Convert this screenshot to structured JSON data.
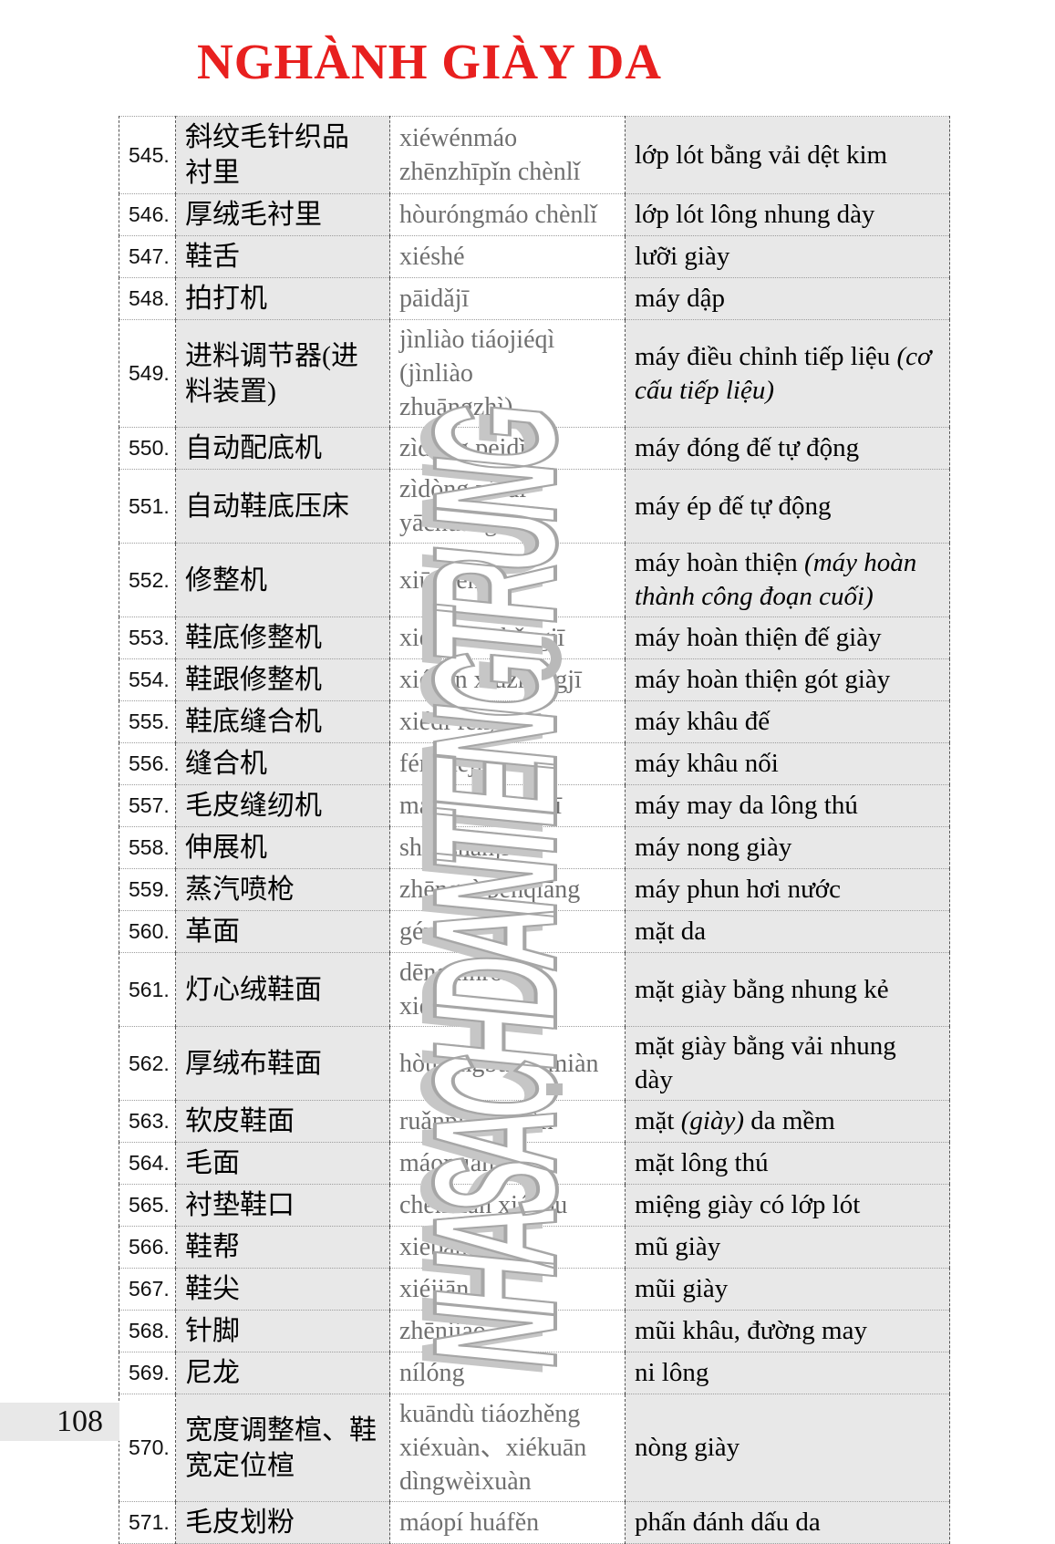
{
  "page": {
    "title": "NGHÀNH GIÀY DA",
    "page_number": "108",
    "colors": {
      "title_red": "#e8201f",
      "cell_gray": "#e8e8e8",
      "pinyin_gray": "#6f6f6f",
      "watermark_gray": "#b9b9b9"
    }
  },
  "watermark": {
    "text": "NHASACHDANTIENGTRUNG"
  },
  "table": {
    "columns": [
      "number",
      "chinese",
      "pinyin",
      "vietnamese"
    ],
    "rows": [
      {
        "num": "545.",
        "zh": [
          "斜纹毛针织品",
          "衬里"
        ],
        "py": [
          "xiéwénmáo",
          "zhēnzhīpǐn chènlǐ"
        ],
        "vi": [
          {
            "t": "lớp lót bằng vải dệt kim",
            "i": false
          }
        ]
      },
      {
        "num": "546.",
        "zh": [
          "厚绒毛衬里"
        ],
        "py": [
          "hòuróngmáo chènlǐ"
        ],
        "vi": [
          {
            "t": "lớp lót lông nhung dày",
            "i": false
          }
        ]
      },
      {
        "num": "547.",
        "zh": [
          "鞋舌"
        ],
        "py": [
          "xiéshé"
        ],
        "vi": [
          {
            "t": "lưỡi giày",
            "i": false
          }
        ]
      },
      {
        "num": "548.",
        "zh": [
          "拍打机"
        ],
        "py": [
          "pāidǎjī"
        ],
        "vi": [
          {
            "t": "máy dập",
            "i": false
          }
        ]
      },
      {
        "num": "549.",
        "zh": [
          "进料调节器(进",
          "料装置)"
        ],
        "py": [
          "jìnliào tiáojiéqì (jìnliào",
          "zhuāngzhì)"
        ],
        "vi": [
          {
            "t": "máy điều chỉnh tiếp liệu ",
            "i": false
          },
          {
            "t": "(cơ cấu tiếp liệu)",
            "i": true
          }
        ]
      },
      {
        "num": "550.",
        "zh": [
          "自动配底机"
        ],
        "py": [
          "zìdòng pèidǐjī"
        ],
        "vi": [
          {
            "t": "máy đóng đế tự động",
            "i": false
          }
        ]
      },
      {
        "num": "551.",
        "zh": [
          "自动鞋底压床"
        ],
        "py": [
          "zìdòng xiédǐ yāchuáng"
        ],
        "vi": [
          {
            "t": "máy ép đế tự động",
            "i": false
          }
        ]
      },
      {
        "num": "552.",
        "zh": [
          "修整机"
        ],
        "py": [
          "xiūzhěngjī"
        ],
        "vi": [
          {
            "t": "máy hoàn thiện ",
            "i": false
          },
          {
            "t": "(máy hoàn thành công đoạn cuối)",
            "i": true
          }
        ]
      },
      {
        "num": "553.",
        "zh": [
          "鞋底修整机"
        ],
        "py": [
          "xiédǐ xiūzhěngjī"
        ],
        "vi": [
          {
            "t": "máy hoàn thiện đế giày",
            "i": false
          }
        ]
      },
      {
        "num": "554.",
        "zh": [
          "鞋跟修整机"
        ],
        "py": [
          "xiégēn xiūzhěngjī"
        ],
        "vi": [
          {
            "t": "máy hoàn thiện gót giày",
            "i": false
          }
        ]
      },
      {
        "num": "555.",
        "zh": [
          "鞋底缝合机"
        ],
        "py": [
          "xiédǐ fénghéjī"
        ],
        "vi": [
          {
            "t": "máy khâu đế",
            "i": false
          }
        ]
      },
      {
        "num": "556.",
        "zh": [
          "缝合机"
        ],
        "py": [
          "fénghéjī"
        ],
        "vi": [
          {
            "t": "máy khâu nối",
            "i": false
          }
        ]
      },
      {
        "num": "557.",
        "zh": [
          "毛皮缝纫机"
        ],
        "py": [
          "máopí féngrènjī"
        ],
        "vi": [
          {
            "t": "máy may da lông thú",
            "i": false
          }
        ]
      },
      {
        "num": "558.",
        "zh": [
          "伸展机"
        ],
        "py": [
          "shēnzhǎnjī"
        ],
        "vi": [
          {
            "t": "máy nong giày",
            "i": false
          }
        ]
      },
      {
        "num": "559.",
        "zh": [
          "蒸汽喷枪"
        ],
        "py": [
          "zhēngqì pēnqiāng"
        ],
        "vi": [
          {
            "t": "máy phun hơi nước",
            "i": false
          }
        ]
      },
      {
        "num": "560.",
        "zh": [
          "革面"
        ],
        "py": [
          "gémiàn"
        ],
        "vi": [
          {
            "t": "mặt da",
            "i": false
          }
        ]
      },
      {
        "num": "561.",
        "zh": [
          "灯心绒鞋面"
        ],
        "py": [
          "dēngxīnróng xiémiàn"
        ],
        "vi": [
          {
            "t": "mặt giày bằng nhung kẻ",
            "i": false
          }
        ]
      },
      {
        "num": "562.",
        "zh": [
          "厚绒布鞋面"
        ],
        "py": [
          "hòuróngbù xiémiàn"
        ],
        "vi": [
          {
            "t": "mặt giày bằng vải nhung dày",
            "i": false
          }
        ]
      },
      {
        "num": "563.",
        "zh": [
          "软皮鞋面"
        ],
        "py": [
          "ruǎnpí xiémiàn"
        ],
        "vi": [
          {
            "t": "mặt ",
            "i": false
          },
          {
            "t": "(giày)",
            "i": true
          },
          {
            "t": " da mềm",
            "i": false
          }
        ]
      },
      {
        "num": "564.",
        "zh": [
          "毛面"
        ],
        "py": [
          "máomiàn"
        ],
        "vi": [
          {
            "t": "mặt lông thú",
            "i": false
          }
        ]
      },
      {
        "num": "565.",
        "zh": [
          "衬垫鞋口"
        ],
        "py": [
          "chèndiàn xiékǒu"
        ],
        "vi": [
          {
            "t": "miệng giày có lớp lót",
            "i": false
          }
        ]
      },
      {
        "num": "566.",
        "zh": [
          "鞋帮"
        ],
        "py": [
          "xiébāng"
        ],
        "vi": [
          {
            "t": "mũ giày",
            "i": false
          }
        ]
      },
      {
        "num": "567.",
        "zh": [
          "鞋尖"
        ],
        "py": [
          "xiéjiān"
        ],
        "vi": [
          {
            "t": "mũi giày",
            "i": false
          }
        ]
      },
      {
        "num": "568.",
        "zh": [
          "针脚"
        ],
        "py": [
          "zhēnjiǎo"
        ],
        "vi": [
          {
            "t": "mũi khâu, đường may",
            "i": false
          }
        ]
      },
      {
        "num": "569.",
        "zh": [
          "尼龙"
        ],
        "py": [
          "nílóng"
        ],
        "vi": [
          {
            "t": "ni lông",
            "i": false
          }
        ]
      },
      {
        "num": "570.",
        "zh": [
          "宽度调整楦、鞋",
          "宽定位楦"
        ],
        "py": [
          "kuāndù tiáozhěng",
          "xiéxuàn、xiékuān",
          "dìngwèixuàn"
        ],
        "vi": [
          {
            "t": "nòng giày",
            "i": false
          }
        ]
      },
      {
        "num": "571.",
        "zh": [
          "毛皮划粉"
        ],
        "py": [
          "máopí huáfěn"
        ],
        "vi": [
          {
            "t": "phấn đánh dấu da",
            "i": false
          }
        ]
      }
    ]
  }
}
